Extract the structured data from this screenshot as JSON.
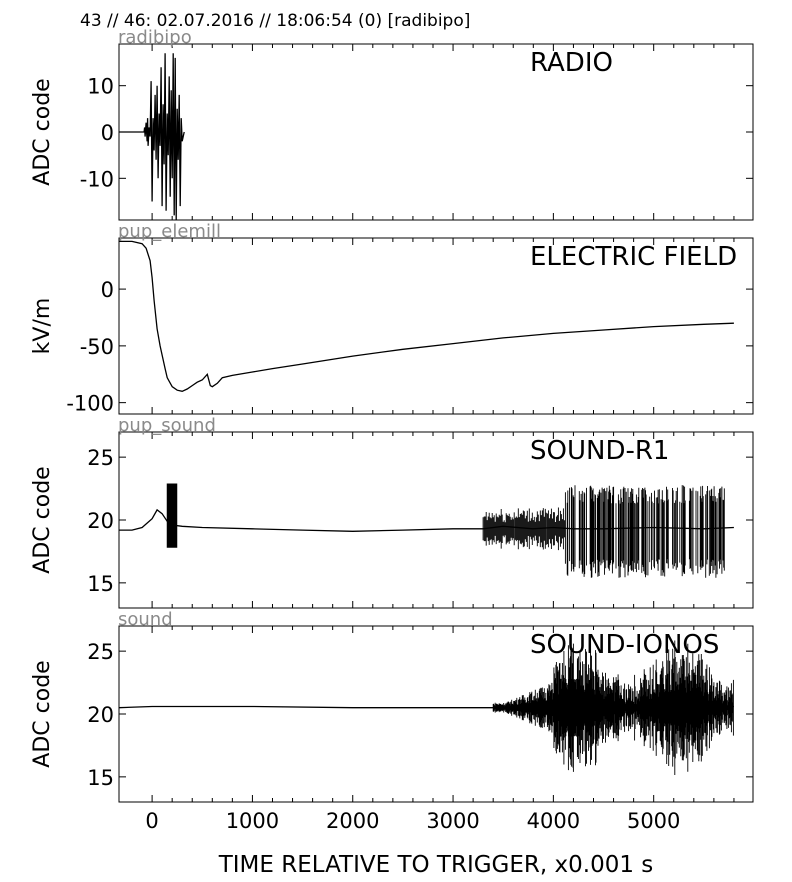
{
  "figure": {
    "header": "43 // 46:   02.07.2016 // 18:06:54 (0)  [radibipo]",
    "xlabel": "TIME RELATIVE TO TRIGGER,   x0.001 s"
  },
  "chart_data": [
    {
      "type": "line",
      "channel": "radibipo",
      "title": "RADIO",
      "ylabel": "ADC code",
      "xlim": [
        -330,
        5990
      ],
      "ylim": [
        -19,
        19
      ],
      "yticks": [
        10,
        0,
        -10
      ],
      "xticks": [
        0,
        1000,
        2000,
        3000,
        4000,
        5000
      ],
      "series": [
        {
          "values_note_free": true,
          "x": [
            -350,
            -80,
            -75,
            -70,
            -60,
            -50,
            -45,
            -40,
            -30,
            -20,
            -10,
            0,
            10,
            20,
            30,
            40,
            50,
            60,
            70,
            80,
            90,
            100,
            110,
            120,
            130,
            140,
            150,
            160,
            170,
            180,
            190,
            200,
            210,
            220,
            230,
            240,
            250,
            260,
            270,
            280,
            290,
            300,
            320
          ],
          "y": [
            0,
            0,
            1,
            -1,
            2,
            -2,
            3,
            -3,
            1,
            -1,
            11,
            -15,
            3,
            -4,
            8,
            -6,
            10,
            -10,
            4,
            -3,
            14,
            -16,
            6,
            -7,
            17,
            -17,
            4,
            -5,
            12,
            -14,
            9,
            -10,
            17,
            -18,
            16,
            -19,
            5,
            -6,
            8,
            -16,
            3,
            -2,
            0
          ]
        }
      ]
    },
    {
      "type": "line",
      "channel": "pup_elemill",
      "title": "ELECTRIC FIELD",
      "ylabel": "kV/m",
      "xlim": [
        -330,
        5990
      ],
      "ylim": [
        -110,
        45
      ],
      "yticks": [
        0,
        -50,
        -100
      ],
      "xticks": [
        0,
        1000,
        2000,
        3000,
        4000,
        5000
      ],
      "series": [
        {
          "x": [
            -330,
            -200,
            -100,
            -60,
            -20,
            0,
            20,
            50,
            80,
            100,
            130,
            150,
            200,
            250,
            300,
            350,
            400,
            450,
            500,
            550,
            580,
            600,
            650,
            700,
            800,
            1000,
            1200,
            1500,
            2000,
            2500,
            3000,
            3500,
            4000,
            4500,
            5000,
            5500,
            5800
          ],
          "y": [
            42,
            42,
            40,
            36,
            25,
            10,
            -10,
            -35,
            -50,
            -58,
            -70,
            -78,
            -86,
            -89,
            -90,
            -88,
            -85,
            -82,
            -80,
            -75,
            -85,
            -86,
            -83,
            -78,
            -76,
            -73,
            -70,
            -66,
            -59,
            -53,
            -48,
            -43,
            -39,
            -36,
            -33,
            -31,
            -30
          ]
        }
      ]
    },
    {
      "type": "line",
      "channel": "pup_sound",
      "title": "SOUND-R1",
      "ylabel": "ADC code",
      "xlim": [
        -330,
        5990
      ],
      "ylim": [
        13,
        27
      ],
      "yticks": [
        25,
        20,
        15
      ],
      "xticks": [
        0,
        1000,
        2000,
        3000,
        4000,
        5000
      ],
      "series": [
        {
          "x": [
            -330,
            -200,
            -100,
            0,
            50,
            100,
            150,
            200,
            300,
            500,
            1000,
            1500,
            2000,
            2500,
            3000,
            3300,
            3500,
            3800,
            4000,
            4200,
            4500,
            5000,
            5500,
            5800
          ],
          "y": [
            19.2,
            19.2,
            19.4,
            20.1,
            20.8,
            20.5,
            19.9,
            19.6,
            19.5,
            19.4,
            19.3,
            19.2,
            19.1,
            19.2,
            19.3,
            19.3,
            19.5,
            19.3,
            19.4,
            19.3,
            19.3,
            19.4,
            19.3,
            19.4
          ]
        }
      ]
    },
    {
      "type": "line",
      "channel": "sound",
      "title": "SOUND-IONOS",
      "ylabel": "ADC code",
      "xlim": [
        -330,
        5990
      ],
      "ylim": [
        13,
        27
      ],
      "yticks": [
        25,
        20,
        15
      ],
      "xticks": [
        0,
        1000,
        2000,
        3000,
        4000,
        5000
      ],
      "series": [
        {
          "x": [
            -330,
            0,
            1000,
            2000,
            3000,
            3400,
            3700,
            4000,
            4200,
            4500,
            4800,
            5000,
            5200,
            5400,
            5600,
            5800
          ],
          "y": [
            20.5,
            20.6,
            20.6,
            20.5,
            20.5,
            20.5,
            20.4,
            20.5,
            20.3,
            20.6,
            20.2,
            20.7,
            20.4,
            20.6,
            20.5,
            20.6
          ]
        }
      ]
    }
  ]
}
